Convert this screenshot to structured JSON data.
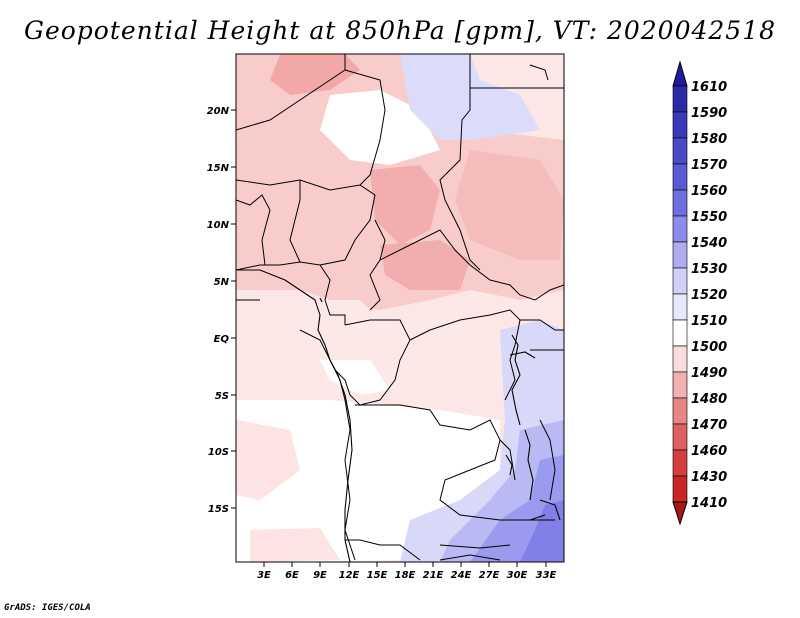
{
  "title": "Geopotential Height at 850hPa [gpm], VT: 2020042518",
  "credit": "GrADS: IGES/COLA",
  "map": {
    "lat_labels": [
      "20N",
      "15N",
      "10N",
      "5N",
      "EQ",
      "5S",
      "10S",
      "15S"
    ],
    "lon_labels": [
      "3E",
      "6E",
      "9E",
      "12E",
      "15E",
      "18E",
      "21E",
      "24E",
      "27E",
      "30E",
      "33E"
    ],
    "region": "Central Africa"
  },
  "colorbar": {
    "levels": [
      "1610",
      "1590",
      "1580",
      "1570",
      "1560",
      "1550",
      "1540",
      "1530",
      "1520",
      "1510",
      "1500",
      "1490",
      "1480",
      "1470",
      "1460",
      "1430",
      "1410"
    ],
    "colors": [
      "#1f1a9e",
      "#2a2aa8",
      "#3838b8",
      "#4a4ac8",
      "#5a5ad4",
      "#6e6ee0",
      "#8c8cea",
      "#adadf2",
      "#cfcff8",
      "#e8e8fc",
      "#ffffff",
      "#fbdcdc",
      "#f3b0b0",
      "#e88585",
      "#dd5f5f",
      "#d53e3e",
      "#c62626",
      "#a81717"
    ]
  }
}
